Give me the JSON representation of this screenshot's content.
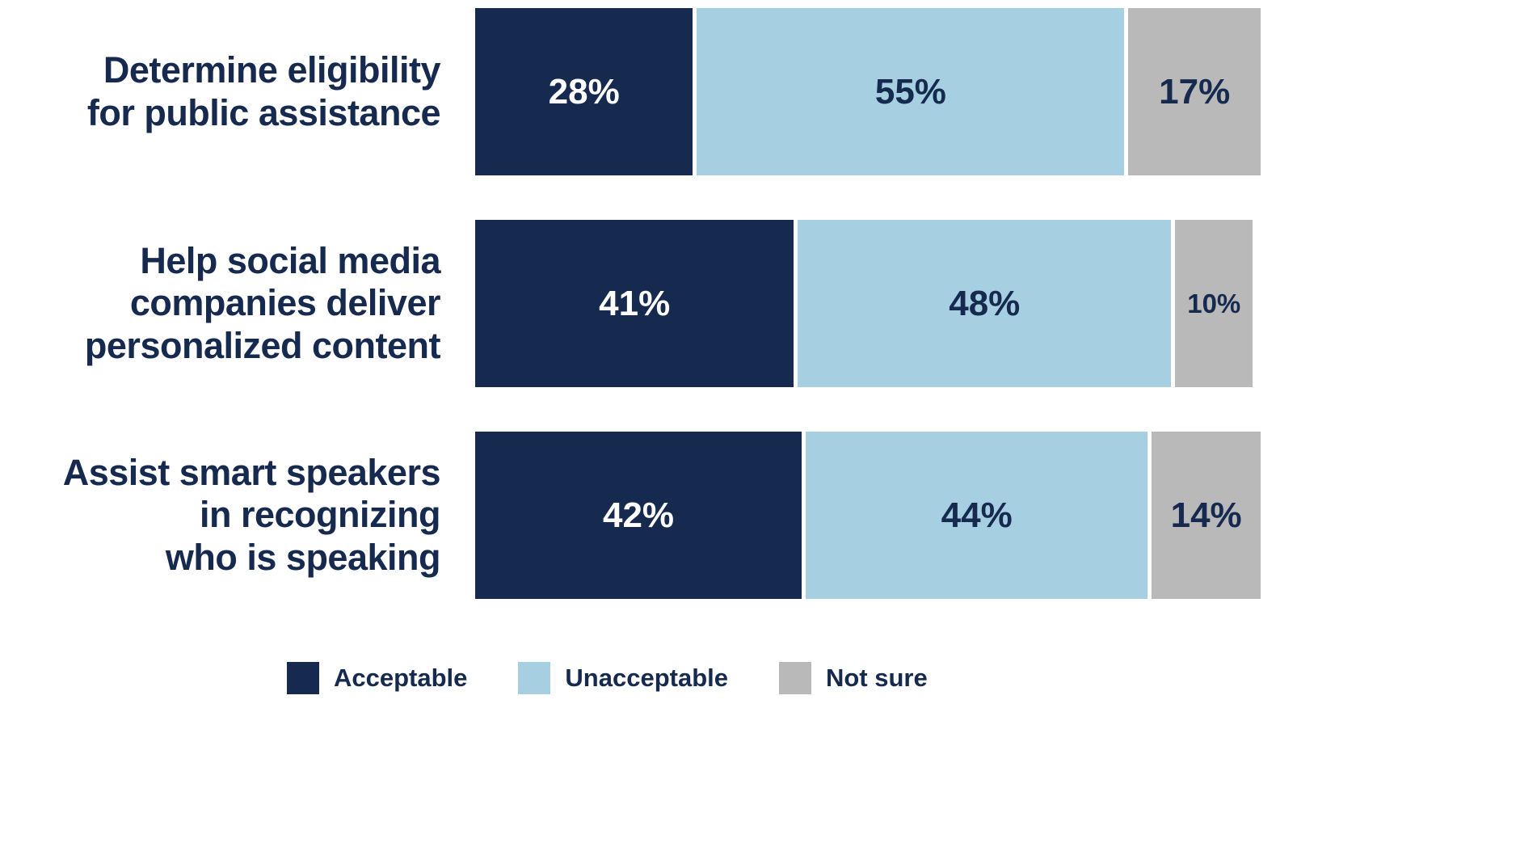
{
  "colors": {
    "background": "#ffffff",
    "navy": "#16294e",
    "light_blue": "#a6cfe2",
    "gray": "#b9b9b9",
    "label_text": "#16294e"
  },
  "chart_data": {
    "type": "bar",
    "orientation": "horizontal",
    "stacked": true,
    "unit": "%",
    "categories": [
      "Determine eligibility for public assistance",
      "Help social media companies deliver personalized content",
      "Assist smart speakers in recognizing who is speaking"
    ],
    "categories_lines": [
      [
        "Determine eligibility",
        "for public assistance"
      ],
      [
        "Help social media",
        "companies deliver",
        "personalized content"
      ],
      [
        "Assist smart speakers",
        "in recognizing",
        "who is speaking"
      ]
    ],
    "series": [
      {
        "name": "Acceptable",
        "values": [
          28,
          41,
          42
        ],
        "color": "#16294e",
        "value_label_color": "#ffffff"
      },
      {
        "name": "Unacceptable",
        "values": [
          55,
          48,
          44
        ],
        "color": "#a6cfe2",
        "value_label_color": "#16294e"
      },
      {
        "name": "Not sure",
        "values": [
          17,
          10,
          14
        ],
        "color": "#b9b9b9",
        "value_label_color": "#16294e"
      }
    ],
    "xlim": [
      0,
      100
    ],
    "grid": false,
    "legend_position": "bottom",
    "legend": [
      "Acceptable",
      "Unacceptable",
      "Not sure"
    ]
  }
}
